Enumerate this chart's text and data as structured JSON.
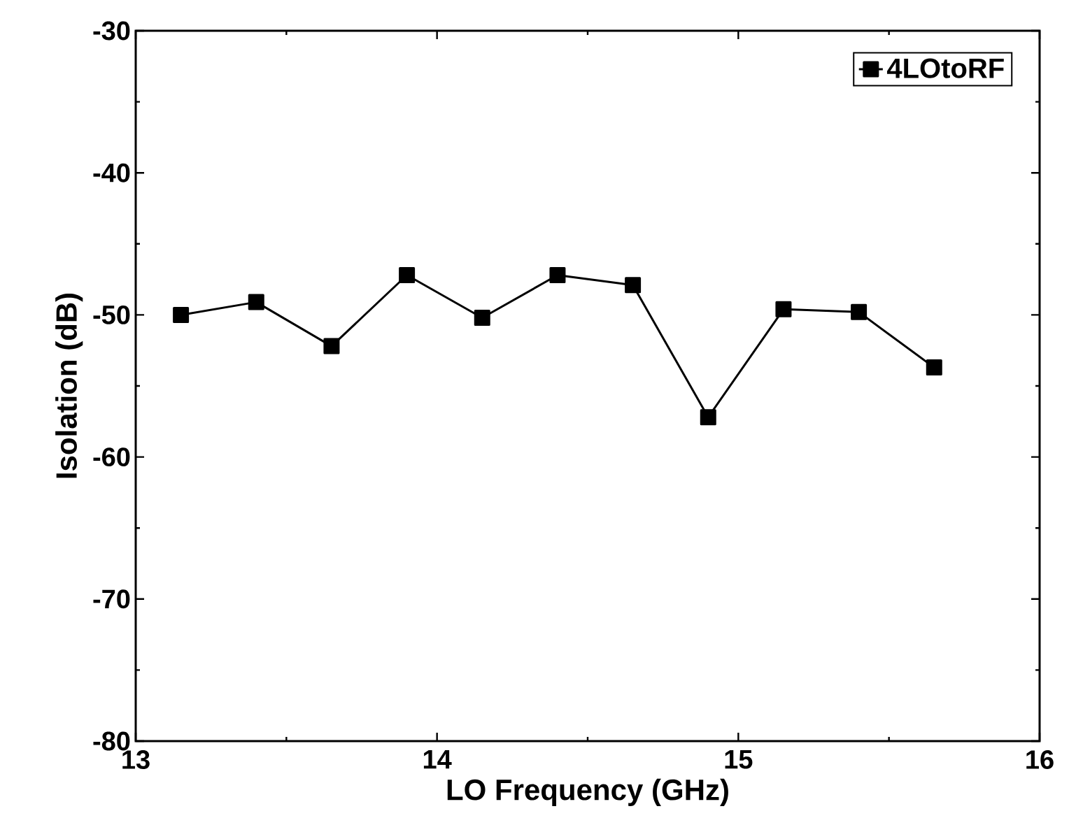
{
  "chart_data": {
    "type": "line",
    "xlabel": "LO Frequency (GHz)",
    "ylabel": "Isolation (dB)",
    "x": [
      13.15,
      13.4,
      13.65,
      13.9,
      14.15,
      14.4,
      14.65,
      14.9,
      15.15,
      15.4,
      15.65
    ],
    "series": [
      {
        "name": "4LOtoRF",
        "color": "#000000",
        "values": [
          -50.0,
          -49.1,
          -52.2,
          -47.2,
          -50.2,
          -47.2,
          -47.9,
          -57.2,
          -49.6,
          -49.8,
          -53.7
        ]
      }
    ],
    "xlim": [
      13,
      16
    ],
    "ylim": [
      -80,
      -30
    ],
    "xticks": [
      13,
      14,
      15,
      16
    ],
    "yticks": [
      -80,
      -70,
      -60,
      -50,
      -40,
      -30
    ],
    "legend": "top right",
    "marker": "square",
    "line_style": "solid",
    "grid": false
  }
}
